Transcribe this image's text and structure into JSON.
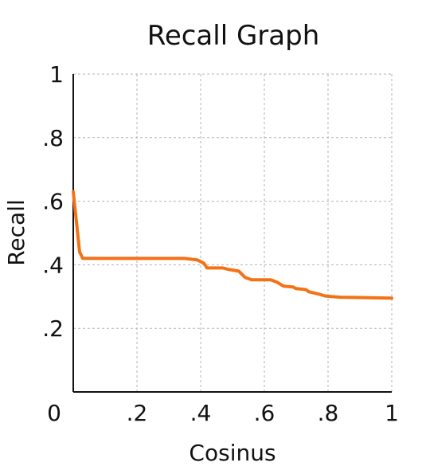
{
  "chart_data": {
    "type": "line",
    "title": "Recall Graph",
    "xlabel": "Cosinus",
    "ylabel": "Recall",
    "xlim": [
      0,
      1
    ],
    "ylim": [
      0,
      1
    ],
    "grid": true,
    "x_ticks": [
      {
        "value": 0,
        "label": "0"
      },
      {
        "value": 0.2,
        "label": ".2"
      },
      {
        "value": 0.4,
        "label": ".4"
      },
      {
        "value": 0.6,
        "label": ".6"
      },
      {
        "value": 0.8,
        "label": ".8"
      },
      {
        "value": 1,
        "label": "1"
      }
    ],
    "y_ticks": [
      {
        "value": 0.2,
        "label": ".2"
      },
      {
        "value": 0.4,
        "label": ".4"
      },
      {
        "value": 0.6,
        "label": ".6"
      },
      {
        "value": 0.8,
        "label": ".8"
      },
      {
        "value": 1,
        "label": "1"
      }
    ],
    "series": [
      {
        "color": "#f47216",
        "x": [
          0,
          0.02,
          0.03,
          0.1,
          0.2,
          0.3,
          0.35,
          0.39,
          0.41,
          0.42,
          0.47,
          0.49,
          0.52,
          0.54,
          0.56,
          0.62,
          0.64,
          0.66,
          0.69,
          0.7,
          0.73,
          0.74,
          0.77,
          0.79,
          0.81,
          0.84,
          0.9,
          1.0
        ],
        "y": [
          0.63,
          0.44,
          0.42,
          0.42,
          0.42,
          0.42,
          0.42,
          0.415,
          0.405,
          0.39,
          0.39,
          0.385,
          0.38,
          0.36,
          0.353,
          0.353,
          0.345,
          0.333,
          0.33,
          0.325,
          0.322,
          0.315,
          0.308,
          0.302,
          0.3,
          0.298,
          0.297,
          0.295
        ]
      }
    ]
  }
}
